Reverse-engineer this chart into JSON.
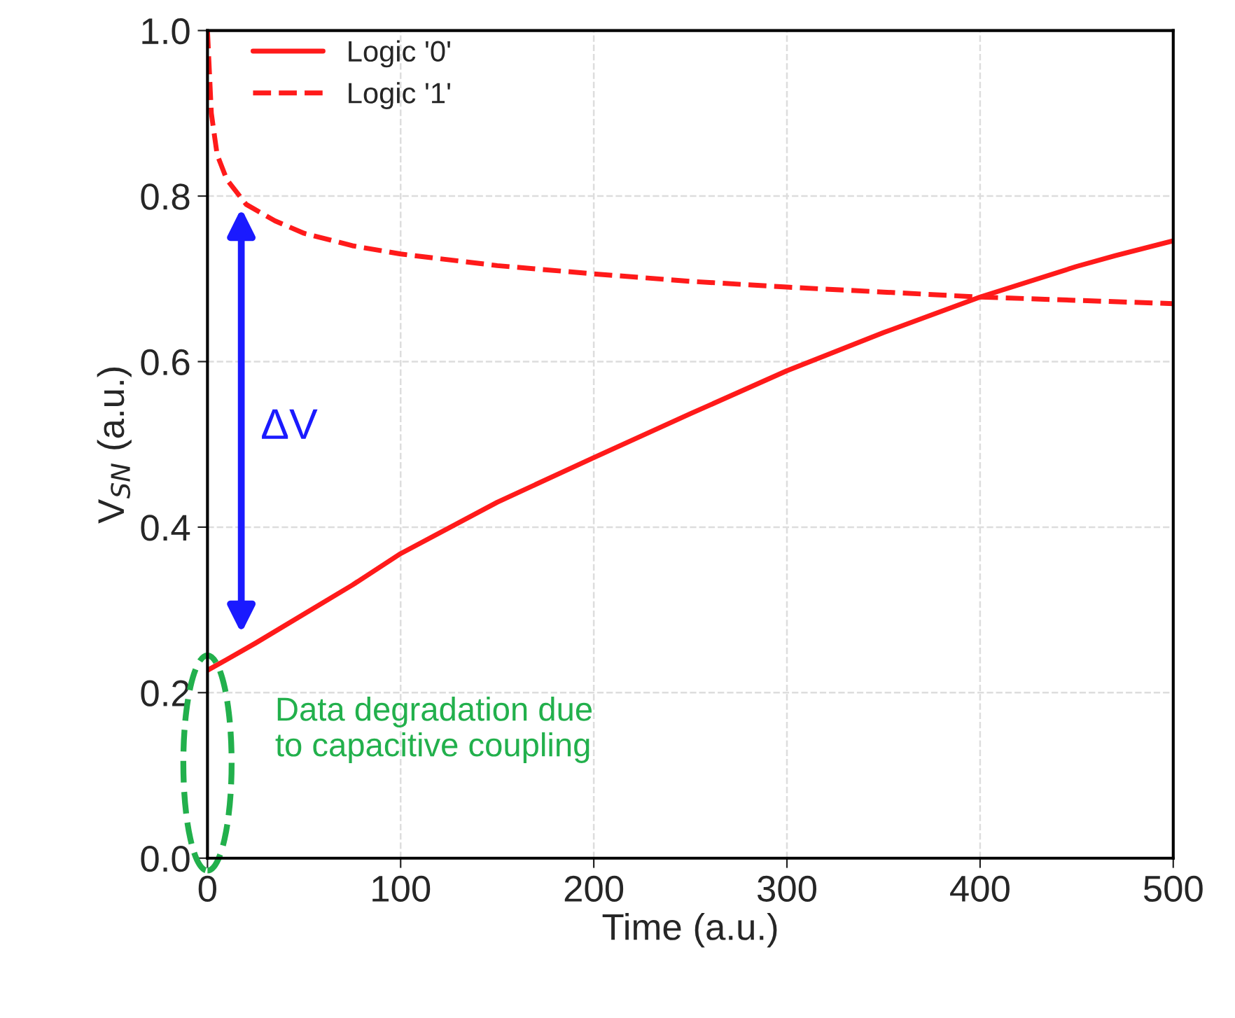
{
  "chart_data": {
    "type": "line",
    "xlabel": "Time (a.u.)",
    "ylabel": "V$_{SN}$ (a.u.)",
    "xlim": [
      0,
      500
    ],
    "ylim": [
      0,
      1.0
    ],
    "xticks": [
      0,
      100,
      200,
      300,
      400,
      500
    ],
    "yticks": [
      {
        "value": 0,
        "label": "0.0"
      },
      {
        "value": 0.2,
        "label": "0.2"
      },
      {
        "value": 0.4,
        "label": "0.4"
      },
      {
        "value": 0.6,
        "label": "0.6"
      },
      {
        "value": 0.8,
        "label": "0.8"
      },
      {
        "value": 1.0,
        "label": "1.0"
      }
    ],
    "grid": true,
    "legend": "top left",
    "series": [
      {
        "name": "Logic '0'",
        "color": "#ff1a1a",
        "line_style": "solid",
        "x": [
          0,
          10,
          25,
          50,
          75,
          100,
          150,
          200,
          250,
          300,
          350,
          400,
          450,
          470,
          500
        ],
        "values": [
          0.227,
          0.24,
          0.26,
          0.295,
          0.33,
          0.368,
          0.43,
          0.484,
          0.537,
          0.589,
          0.635,
          0.678,
          0.715,
          0.728,
          0.746
        ]
      },
      {
        "name": "Logic '1'",
        "color": "#ff1a1a",
        "line_style": "dashed",
        "x": [
          0,
          2,
          5,
          10,
          20,
          35,
          50,
          75,
          100,
          150,
          200,
          250,
          300,
          350,
          400,
          450,
          500
        ],
        "values": [
          1.0,
          0.9,
          0.85,
          0.82,
          0.79,
          0.77,
          0.755,
          0.74,
          0.73,
          0.716,
          0.706,
          0.697,
          0.69,
          0.684,
          0.678,
          0.674,
          0.67
        ]
      }
    ],
    "annotations": [
      "ΔV",
      "Data degradation due\nto capacitive coupling"
    ]
  }
}
